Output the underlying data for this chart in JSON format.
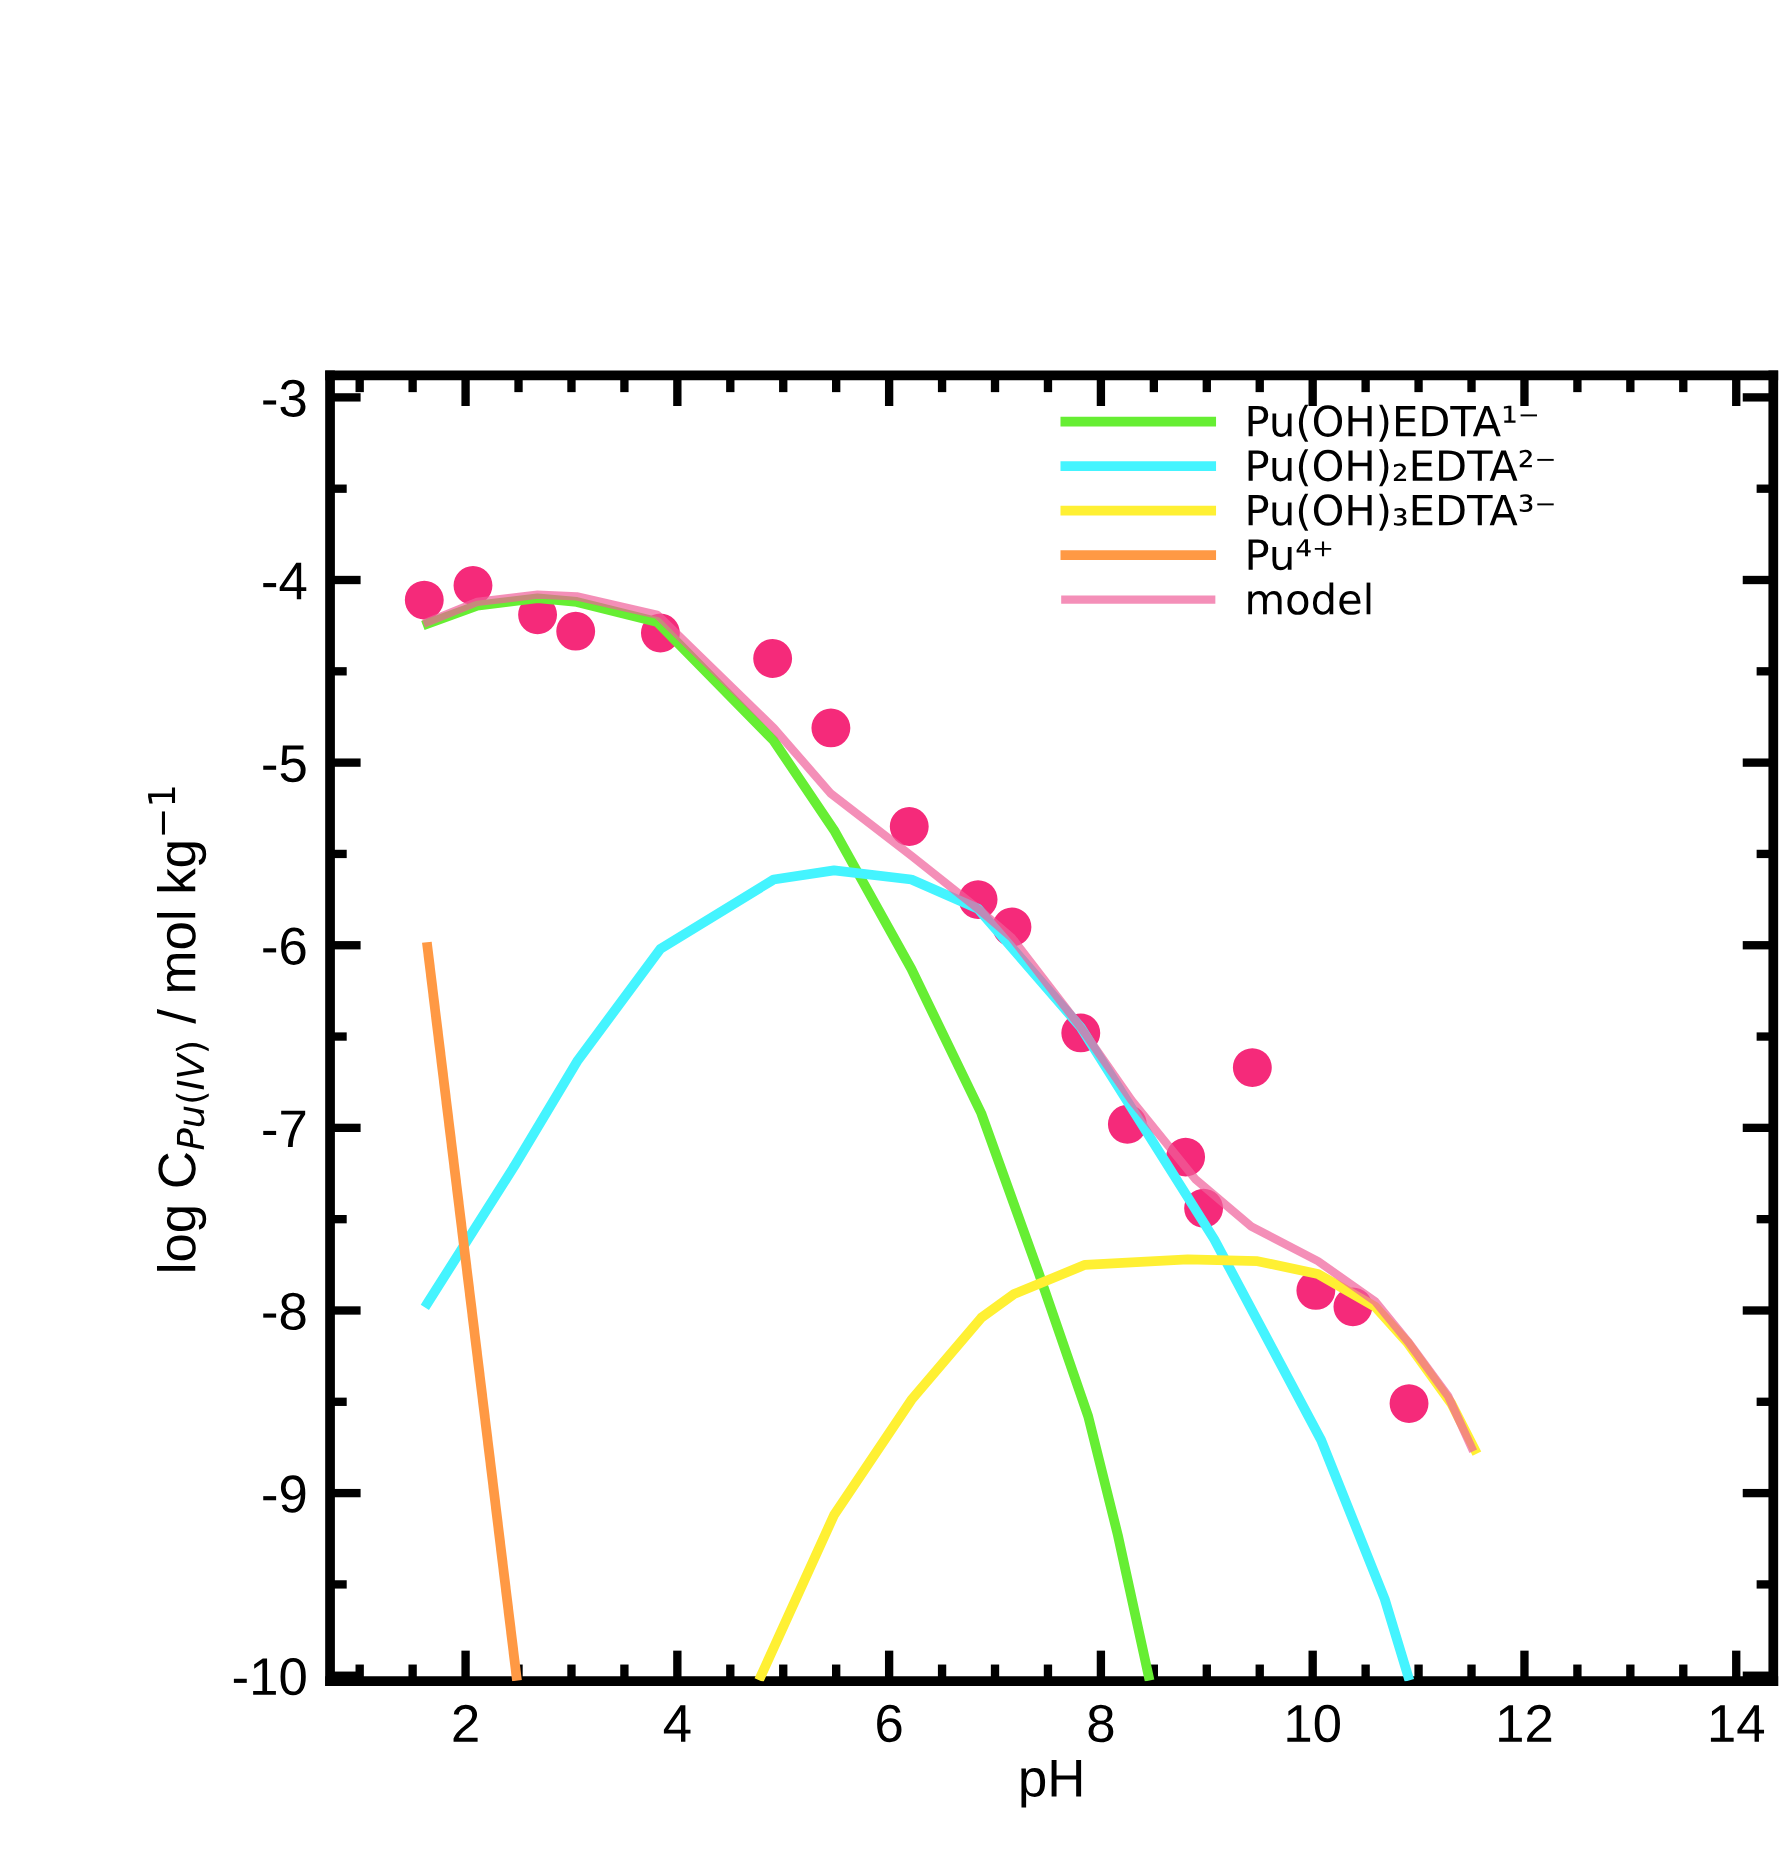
{
  "chart_data": {
    "type": "line",
    "xlabel": "pH",
    "ylabel": "log C$_{Pu(IV)}$ / mol kg$^{−1}$",
    "xlim": [
      0.72,
      14.35
    ],
    "ylim": [
      -10.03,
      -2.88
    ],
    "xticks": [
      {
        "value": 1,
        "label": null
      },
      {
        "value": 1.5,
        "label": null
      },
      2,
      {
        "value": 2.5,
        "label": null
      },
      {
        "value": 3,
        "label": null
      },
      {
        "value": 3.5,
        "label": null
      },
      4,
      {
        "value": 4.5,
        "label": null
      },
      {
        "value": 5,
        "label": null
      },
      {
        "value": 5.5,
        "label": null
      },
      6,
      {
        "value": 6.5,
        "label": null
      },
      {
        "value": 7,
        "label": null
      },
      {
        "value": 7.5,
        "label": null
      },
      8,
      {
        "value": 8.5,
        "label": null
      },
      {
        "value": 9,
        "label": null
      },
      {
        "value": 9.5,
        "label": null
      },
      10,
      {
        "value": 10.5,
        "label": null
      },
      {
        "value": 11,
        "label": null
      },
      {
        "value": 11.5,
        "label": null
      },
      12,
      {
        "value": 12.5,
        "label": null
      },
      {
        "value": 13,
        "label": null
      },
      {
        "value": 13.5,
        "label": null
      },
      14
    ],
    "yticks": [
      -10,
      {
        "value": -9.5,
        "label": null
      },
      -9,
      {
        "value": -8.5,
        "label": null
      },
      -8,
      {
        "value": -7.5,
        "label": null
      },
      -7,
      {
        "value": -6.5,
        "label": null
      },
      -6,
      {
        "value": -5.5,
        "label": null
      },
      -5,
      {
        "value": -4.5,
        "label": null
      },
      -4,
      {
        "value": -3.5,
        "label": null
      },
      -3
    ],
    "legend": "top right",
    "series": [
      {
        "name": "Pu(OH)EDTA¹⁻",
        "color": "#66ee33",
        "x": [
          1.64,
          2.11,
          2.68,
          3.05,
          3.81,
          4.91,
          5.48,
          6.21,
          6.87,
          7.41,
          7.88,
          8.16,
          8.45
        ],
        "values": [
          -4.24,
          -4.14,
          -4.1,
          -4.12,
          -4.23,
          -4.88,
          -5.37,
          -6.13,
          -6.92,
          -7.79,
          -8.58,
          -9.23,
          -10
        ]
      },
      {
        "name": "Pu(OH)₂EDTA²⁻",
        "color": "#44f4ff",
        "x": [
          1.64,
          2.46,
          3.06,
          3.84,
          4.91,
          5.48,
          6.21,
          6.84,
          7.81,
          9.07,
          10.08,
          10.68,
          10.9
        ],
        "values": [
          -7.96,
          -7.21,
          -6.63,
          -6.02,
          -5.64,
          -5.59,
          -5.64,
          -5.8,
          -6.45,
          -7.61,
          -8.71,
          -9.58,
          -10
        ]
      },
      {
        "name": "Pu(OH)₃EDTA³⁻",
        "color": "#fff033",
        "x": [
          4.79,
          5.48,
          6.21,
          6.87,
          7.18,
          7.85,
          8.82,
          9.48,
          10.05,
          10.59,
          10.9,
          11.31,
          11.53
        ],
        "values": [
          -10,
          -9.12,
          -8.49,
          -8.04,
          -7.91,
          -7.75,
          -7.72,
          -7.73,
          -7.8,
          -7.98,
          -8.18,
          -8.51,
          -8.76
        ]
      },
      {
        "name": "Pu⁴⁺",
        "color": "#ff9944",
        "x": [
          1.64,
          2.48
        ],
        "values": [
          -6.01,
          -10
        ]
      },
      {
        "name": "model",
        "color": "#f0609a",
        "x": [
          1.64,
          2.11,
          2.68,
          3.05,
          3.81,
          4.91,
          5.45,
          6.21,
          6.84,
          7.16,
          7.81,
          8.29,
          8.89,
          9.42,
          10.05,
          10.59,
          10.9,
          11.28,
          11.5
        ],
        "values": [
          -4.23,
          -4.12,
          -4.08,
          -4.09,
          -4.19,
          -4.81,
          -5.17,
          -5.51,
          -5.8,
          -5.96,
          -6.45,
          -6.85,
          -7.28,
          -7.54,
          -7.73,
          -7.95,
          -8.17,
          -8.47,
          -8.75
        ]
      },
      {
        "type": "scatter",
        "marker": "circle",
        "color": "#f52a7a",
        "x": [
          1.61,
          2.07,
          2.68,
          3.04,
          3.84,
          4.9,
          5.45,
          6.19,
          6.84,
          7.16,
          7.81,
          8.25,
          8.8,
          8.97,
          9.43,
          10.03,
          10.38,
          10.91
        ],
        "values": [
          -4.11,
          -4.03,
          -4.19,
          -4.28,
          -4.29,
          -4.43,
          -4.81,
          -5.35,
          -5.75,
          -5.9,
          -6.48,
          -6.98,
          -7.16,
          -7.44,
          -6.67,
          -7.89,
          -7.98,
          -8.51
        ]
      }
    ]
  }
}
